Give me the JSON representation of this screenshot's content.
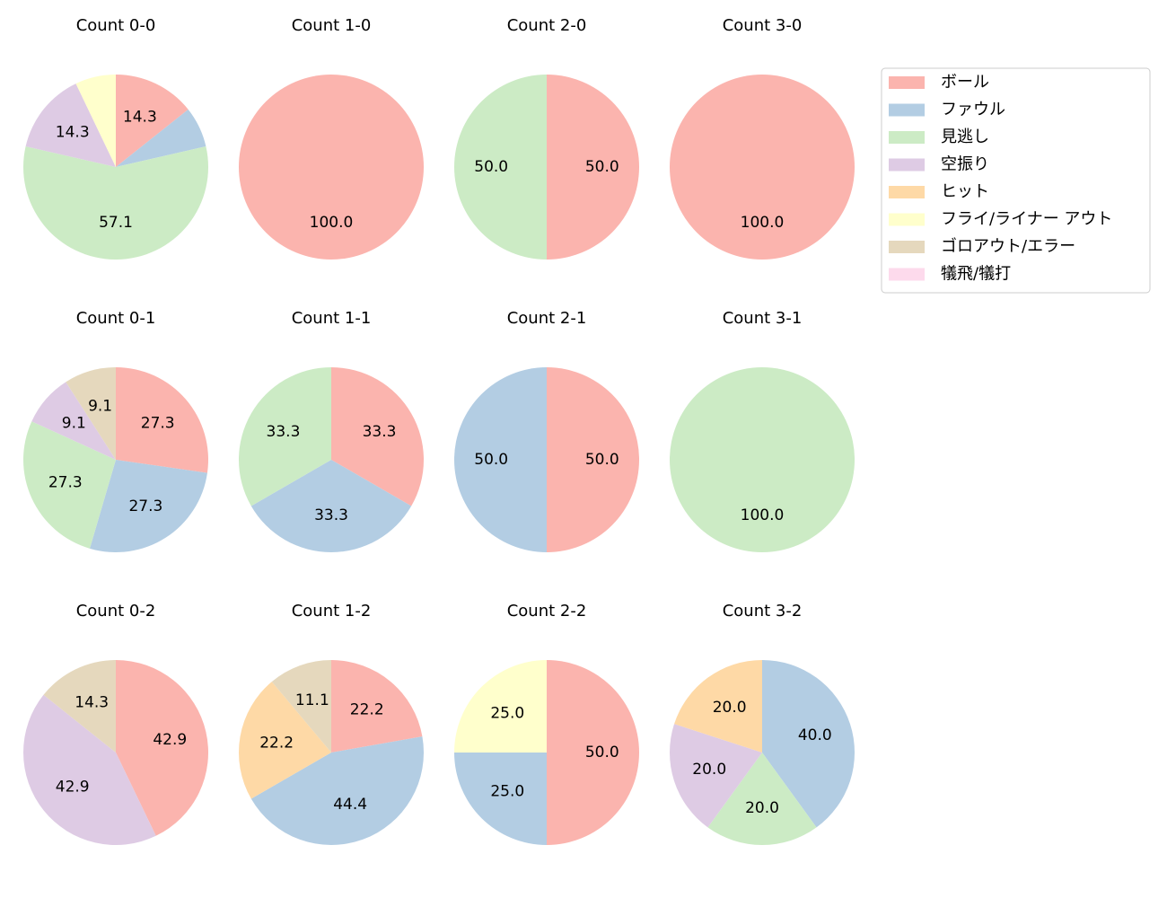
{
  "chart_data": [
    {
      "type": "pie",
      "title": "Count 0-0",
      "values": [
        14.3,
        7.1,
        57.1,
        14.3,
        0,
        7.1,
        0,
        0
      ],
      "value_labels": [
        "14.3",
        null,
        "57.1",
        "14.3",
        null,
        null,
        null,
        null
      ]
    },
    {
      "type": "pie",
      "title": "Count 1-0",
      "values": [
        100,
        0,
        0,
        0,
        0,
        0,
        0,
        0
      ],
      "value_labels": [
        "100.0",
        null,
        null,
        null,
        null,
        null,
        null,
        null
      ]
    },
    {
      "type": "pie",
      "title": "Count 2-0",
      "values": [
        50,
        0,
        50,
        0,
        0,
        0,
        0,
        0
      ],
      "value_labels": [
        "50.0",
        null,
        "50.0",
        null,
        null,
        null,
        null,
        null
      ]
    },
    {
      "type": "pie",
      "title": "Count 3-0",
      "values": [
        100,
        0,
        0,
        0,
        0,
        0,
        0,
        0
      ],
      "value_labels": [
        "100.0",
        null,
        null,
        null,
        null,
        null,
        null,
        null
      ]
    },
    {
      "type": "pie",
      "title": "Count 0-1",
      "values": [
        27.3,
        27.3,
        27.3,
        9.1,
        0,
        0,
        9.1,
        0
      ],
      "value_labels": [
        "27.3",
        "27.3",
        "27.3",
        "9.1",
        null,
        null,
        "9.1",
        null
      ]
    },
    {
      "type": "pie",
      "title": "Count 1-1",
      "values": [
        33.3,
        33.3,
        33.3,
        0,
        0,
        0,
        0,
        0
      ],
      "value_labels": [
        "33.3",
        "33.3",
        "33.3",
        null,
        null,
        null,
        null,
        null
      ]
    },
    {
      "type": "pie",
      "title": "Count 2-1",
      "values": [
        50,
        50,
        0,
        0,
        0,
        0,
        0,
        0
      ],
      "value_labels": [
        "50.0",
        "50.0",
        null,
        null,
        null,
        null,
        null,
        null
      ]
    },
    {
      "type": "pie",
      "title": "Count 3-1",
      "values": [
        0,
        0,
        100,
        0,
        0,
        0,
        0,
        0
      ],
      "value_labels": [
        null,
        null,
        "100.0",
        null,
        null,
        null,
        null,
        null
      ]
    },
    {
      "type": "pie",
      "title": "Count 0-2",
      "values": [
        42.9,
        0,
        0,
        42.9,
        0,
        0,
        14.3,
        0
      ],
      "value_labels": [
        "42.9",
        null,
        null,
        "42.9",
        null,
        null,
        "14.3",
        null
      ]
    },
    {
      "type": "pie",
      "title": "Count 1-2",
      "values": [
        22.2,
        44.4,
        0,
        0,
        22.2,
        0,
        11.1,
        0
      ],
      "value_labels": [
        "22.2",
        "44.4",
        null,
        null,
        "22.2",
        null,
        "11.1",
        null
      ]
    },
    {
      "type": "pie",
      "title": "Count 2-2",
      "values": [
        50,
        25,
        0,
        0,
        0,
        25,
        0,
        0
      ],
      "value_labels": [
        "50.0",
        "25.0",
        null,
        null,
        null,
        "25.0",
        null,
        null
      ]
    },
    {
      "type": "pie",
      "title": "Count 3-2",
      "values": [
        0,
        40,
        20,
        20,
        20,
        0,
        0,
        0
      ],
      "value_labels": [
        null,
        "40.0",
        "20.0",
        "20.0",
        "20.0",
        null,
        null,
        null
      ]
    }
  ],
  "legend": {
    "position": "upper right",
    "categories": [
      "ボール",
      "ファウル",
      "見逃し",
      "空振り",
      "ヒット",
      "フライ/ライナー アウト",
      "ゴロアウト/エラー",
      "犠飛/犠打"
    ],
    "colors": [
      "#fbb4ae",
      "#b3cde3",
      "#ccebc5",
      "#decbe4",
      "#fed9a6",
      "#ffffcc",
      "#e5d8bd",
      "#fddaec"
    ]
  }
}
